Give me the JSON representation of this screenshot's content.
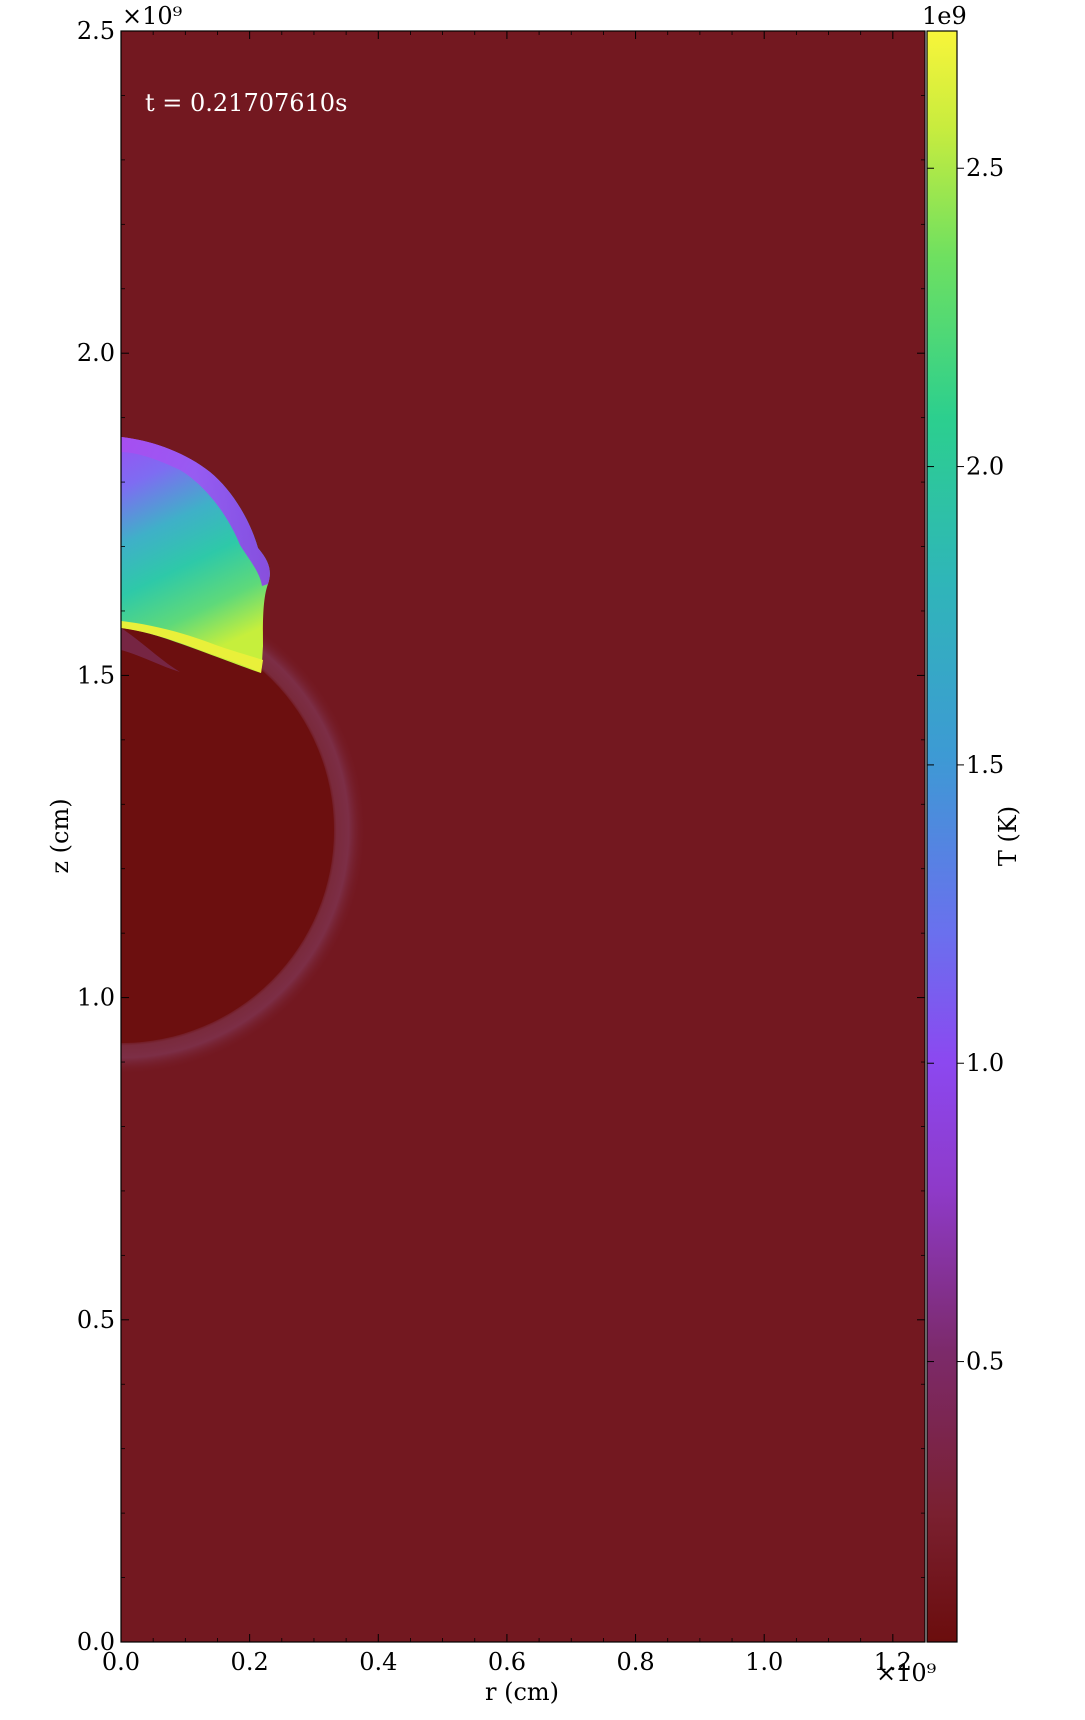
{
  "chart_data": {
    "type": "heatmap",
    "title": "",
    "xlabel": "r  (cm)",
    "ylabel": "z  (cm)",
    "xlim": [
      0.0,
      1.25
    ],
    "ylim": [
      0.0,
      2.5
    ],
    "x_scale_label": "×10⁹",
    "y_scale_label": "×10⁹",
    "x_ticks": [
      "0.0",
      "0.2",
      "0.4",
      "0.6",
      "0.8",
      "1.0",
      "1.2"
    ],
    "y_ticks": [
      "0.0",
      "0.5",
      "1.0",
      "1.5",
      "2.0",
      "2.5"
    ],
    "annotation": "t = 0.21707610s",
    "colorbar": {
      "label": "T  (K)",
      "offset_label": "1e9",
      "range": [
        0.03,
        2.73
      ],
      "ticks": [
        "0.5",
        "1.0",
        "1.5",
        "2.0",
        "2.5"
      ]
    },
    "background_color": "#731820",
    "features": {
      "star_center": [
        0.0,
        1.25
      ],
      "star_radius": 0.33,
      "shock_cap_top_z": 1.87,
      "shock_cap_edge_r": 0.23,
      "shock_cap_base_z": 1.5
    }
  }
}
